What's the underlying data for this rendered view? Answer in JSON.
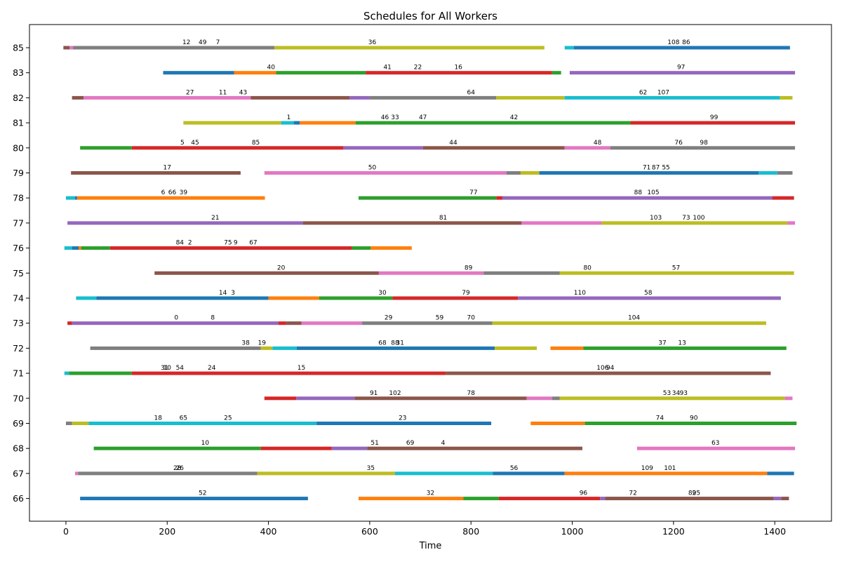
{
  "chart_data": {
    "type": "gantt",
    "title": "Schedules for All Workers",
    "xlabel": "Time",
    "ylabel": "",
    "xlim": [
      -72,
      1512
    ],
    "x_ticks": [
      0,
      200,
      400,
      600,
      800,
      1000,
      1200,
      1400
    ],
    "colors": {
      "blue": "#1f77b4",
      "orange": "#ff7f0e",
      "green": "#2ca02c",
      "red": "#d62728",
      "purple": "#9467bd",
      "brown": "#8c564b",
      "pink": "#e377c2",
      "gray": "#7f7f7f",
      "olive": "#bcbd22",
      "cyan": "#17becf"
    },
    "workers": [
      {
        "worker": "85",
        "segments": [
          [
            -5,
            7,
            "brown"
          ],
          [
            7,
            14,
            "pink"
          ],
          [
            14,
            412,
            "gray"
          ],
          [
            412,
            585,
            "olive"
          ],
          [
            585,
            945,
            "olive"
          ],
          [
            985,
            1003,
            "cyan"
          ],
          [
            1003,
            1430,
            "blue"
          ]
        ],
        "labels": [
          [
            238,
            "12"
          ],
          [
            270,
            "49"
          ],
          [
            300,
            "7"
          ],
          [
            605,
            "36"
          ],
          [
            1200,
            "108"
          ],
          [
            1225,
            "86"
          ]
        ]
      },
      {
        "worker": "83",
        "segments": [
          [
            192,
            332,
            "blue"
          ],
          [
            332,
            415,
            "orange"
          ],
          [
            415,
            592,
            "green"
          ],
          [
            592,
            960,
            "red"
          ],
          [
            960,
            978,
            "green"
          ],
          [
            995,
            1440,
            "purple"
          ]
        ],
        "labels": [
          [
            405,
            "40"
          ],
          [
            635,
            "41"
          ],
          [
            695,
            "22"
          ],
          [
            775,
            "16"
          ],
          [
            1215,
            "97"
          ]
        ]
      },
      {
        "worker": "82",
        "segments": [
          [
            12,
            35,
            "brown"
          ],
          [
            35,
            365,
            "pink"
          ],
          [
            365,
            560,
            "brown"
          ],
          [
            560,
            600,
            "purple"
          ],
          [
            600,
            850,
            "gray"
          ],
          [
            850,
            985,
            "olive"
          ],
          [
            985,
            1410,
            "cyan"
          ],
          [
            1410,
            1435,
            "olive"
          ]
        ],
        "labels": [
          [
            245,
            "27"
          ],
          [
            310,
            "11"
          ],
          [
            350,
            "43"
          ],
          [
            800,
            "64"
          ],
          [
            1140,
            "62"
          ],
          [
            1180,
            "107"
          ]
        ]
      },
      {
        "worker": "81",
        "segments": [
          [
            232,
            425,
            "olive"
          ],
          [
            425,
            450,
            "cyan"
          ],
          [
            450,
            462,
            "blue"
          ],
          [
            462,
            572,
            "orange"
          ],
          [
            572,
            1115,
            "green"
          ],
          [
            1115,
            1440,
            "red"
          ]
        ],
        "labels": [
          [
            440,
            "1"
          ],
          [
            630,
            "46"
          ],
          [
            650,
            "33"
          ],
          [
            705,
            "47"
          ],
          [
            885,
            "42"
          ],
          [
            1280,
            "99"
          ]
        ]
      },
      {
        "worker": "80",
        "segments": [
          [
            28,
            130,
            "green"
          ],
          [
            130,
            548,
            "red"
          ],
          [
            548,
            705,
            "purple"
          ],
          [
            705,
            985,
            "brown"
          ],
          [
            985,
            1075,
            "pink"
          ],
          [
            1075,
            1440,
            "gray"
          ]
        ],
        "labels": [
          [
            230,
            "5"
          ],
          [
            255,
            "45"
          ],
          [
            375,
            "85"
          ],
          [
            765,
            "44"
          ],
          [
            1050,
            "48"
          ],
          [
            1210,
            "76"
          ],
          [
            1260,
            "98"
          ]
        ]
      },
      {
        "worker": "79",
        "segments": [
          [
            10,
            345,
            "brown"
          ],
          [
            392,
            870,
            "pink"
          ],
          [
            870,
            898,
            "gray"
          ],
          [
            898,
            935,
            "olive"
          ],
          [
            935,
            1368,
            "blue"
          ],
          [
            1368,
            1405,
            "cyan"
          ],
          [
            1405,
            1435,
            "gray"
          ]
        ],
        "labels": [
          [
            200,
            "17"
          ],
          [
            605,
            "50"
          ],
          [
            1147,
            "71"
          ],
          [
            1165,
            "87"
          ],
          [
            1185,
            "55"
          ]
        ]
      },
      {
        "worker": "78",
        "segments": [
          [
            0,
            18,
            "cyan"
          ],
          [
            18,
            22,
            "blue"
          ],
          [
            22,
            393,
            "orange"
          ],
          [
            578,
            850,
            "green"
          ],
          [
            850,
            862,
            "red"
          ],
          [
            862,
            1395,
            "purple"
          ],
          [
            1395,
            1438,
            "red"
          ]
        ],
        "labels": [
          [
            192,
            "6"
          ],
          [
            210,
            "66"
          ],
          [
            232,
            "39"
          ],
          [
            805,
            "77"
          ],
          [
            1130,
            "88"
          ],
          [
            1160,
            "105"
          ]
        ]
      },
      {
        "worker": "77",
        "segments": [
          [
            3,
            468,
            "purple"
          ],
          [
            468,
            900,
            "brown"
          ],
          [
            900,
            1058,
            "pink"
          ],
          [
            1058,
            1425,
            "olive"
          ],
          [
            1425,
            1440,
            "pink"
          ]
        ],
        "labels": [
          [
            295,
            "21"
          ],
          [
            745,
            "81"
          ],
          [
            1165,
            "103"
          ],
          [
            1225,
            "73"
          ],
          [
            1250,
            "100"
          ]
        ]
      },
      {
        "worker": "76",
        "segments": [
          [
            -3,
            12,
            "cyan"
          ],
          [
            12,
            25,
            "blue"
          ],
          [
            25,
            30,
            "orange"
          ],
          [
            30,
            87,
            "green"
          ],
          [
            87,
            565,
            "red"
          ],
          [
            565,
            602,
            "green"
          ],
          [
            602,
            683,
            "orange"
          ]
        ],
        "labels": [
          [
            225,
            "84"
          ],
          [
            245,
            "2"
          ],
          [
            320,
            "75"
          ],
          [
            335,
            "9"
          ],
          [
            370,
            "67"
          ]
        ]
      },
      {
        "worker": "75",
        "segments": [
          [
            175,
            618,
            "brown"
          ],
          [
            618,
            825,
            "pink"
          ],
          [
            825,
            975,
            "gray"
          ],
          [
            975,
            1438,
            "olive"
          ]
        ],
        "labels": [
          [
            425,
            "20"
          ],
          [
            795,
            "89"
          ],
          [
            1030,
            "80"
          ],
          [
            1205,
            "57"
          ]
        ]
      },
      {
        "worker": "74",
        "segments": [
          [
            20,
            60,
            "cyan"
          ],
          [
            60,
            400,
            "blue"
          ],
          [
            400,
            500,
            "orange"
          ],
          [
            500,
            645,
            "green"
          ],
          [
            645,
            893,
            "red"
          ],
          [
            893,
            1412,
            "purple"
          ]
        ],
        "labels": [
          [
            310,
            "14"
          ],
          [
            330,
            "3"
          ],
          [
            625,
            "30"
          ],
          [
            790,
            "79"
          ],
          [
            1015,
            "110"
          ],
          [
            1150,
            "58"
          ]
        ]
      },
      {
        "worker": "73",
        "segments": [
          [
            3,
            12,
            "red"
          ],
          [
            12,
            420,
            "purple"
          ],
          [
            420,
            435,
            "red"
          ],
          [
            435,
            465,
            "brown"
          ],
          [
            465,
            585,
            "pink"
          ],
          [
            585,
            842,
            "gray"
          ],
          [
            842,
            1383,
            "olive"
          ]
        ],
        "labels": [
          [
            218,
            "0"
          ],
          [
            290,
            "8"
          ],
          [
            637,
            "29"
          ],
          [
            738,
            "59"
          ],
          [
            800,
            "70"
          ],
          [
            1122,
            "104"
          ]
        ]
      },
      {
        "worker": "72",
        "segments": [
          [
            48,
            385,
            "gray"
          ],
          [
            385,
            408,
            "olive"
          ],
          [
            408,
            456,
            "cyan"
          ],
          [
            456,
            847,
            "blue"
          ],
          [
            847,
            930,
            "olive"
          ],
          [
            957,
            1022,
            "orange"
          ],
          [
            1022,
            1423,
            "green"
          ]
        ],
        "labels": [
          [
            355,
            "38"
          ],
          [
            387,
            "19"
          ],
          [
            625,
            "68"
          ],
          [
            650,
            "88"
          ],
          [
            660,
            "31"
          ],
          [
            1178,
            "37"
          ],
          [
            1217,
            "13"
          ]
        ]
      },
      {
        "worker": "71",
        "segments": [
          [
            -3,
            6,
            "cyan"
          ],
          [
            6,
            130,
            "green"
          ],
          [
            130,
            750,
            "red"
          ],
          [
            750,
            1392,
            "brown"
          ]
        ],
        "labels": [
          [
            195,
            "31"
          ],
          [
            200,
            "10"
          ],
          [
            225,
            "54"
          ],
          [
            288,
            "24"
          ],
          [
            465,
            "15"
          ],
          [
            1060,
            "106"
          ],
          [
            1075,
            "94"
          ]
        ]
      },
      {
        "worker": "70",
        "segments": [
          [
            392,
            455,
            "red"
          ],
          [
            455,
            570,
            "purple"
          ],
          [
            570,
            910,
            "brown"
          ],
          [
            910,
            960,
            "pink"
          ],
          [
            960,
            975,
            "gray"
          ],
          [
            975,
            1420,
            "olive"
          ],
          [
            1420,
            1435,
            "pink"
          ]
        ],
        "labels": [
          [
            608,
            "91"
          ],
          [
            650,
            "102"
          ],
          [
            800,
            "78"
          ],
          [
            1187,
            "53"
          ],
          [
            1205,
            "34"
          ],
          [
            1220,
            "93"
          ]
        ]
      },
      {
        "worker": "69",
        "segments": [
          [
            0,
            12,
            "gray"
          ],
          [
            12,
            45,
            "olive"
          ],
          [
            45,
            495,
            "cyan"
          ],
          [
            495,
            840,
            "blue"
          ],
          [
            918,
            1025,
            "orange"
          ],
          [
            1025,
            1443,
            "green"
          ]
        ],
        "labels": [
          [
            182,
            "18"
          ],
          [
            232,
            "65"
          ],
          [
            320,
            "25"
          ],
          [
            665,
            "23"
          ],
          [
            1173,
            "74"
          ],
          [
            1240,
            "90"
          ]
        ]
      },
      {
        "worker": "68",
        "segments": [
          [
            55,
            385,
            "green"
          ],
          [
            385,
            525,
            "red"
          ],
          [
            525,
            595,
            "purple"
          ],
          [
            595,
            1020,
            "brown"
          ],
          [
            1128,
            1440,
            "pink"
          ]
        ],
        "labels": [
          [
            275,
            "10"
          ],
          [
            610,
            "51"
          ],
          [
            680,
            "69"
          ],
          [
            745,
            "4"
          ],
          [
            1283,
            "63"
          ]
        ]
      },
      {
        "worker": "67",
        "segments": [
          [
            18,
            24,
            "pink"
          ],
          [
            24,
            378,
            "gray"
          ],
          [
            378,
            650,
            "olive"
          ],
          [
            650,
            843,
            "cyan"
          ],
          [
            843,
            985,
            "blue"
          ],
          [
            985,
            1385,
            "orange"
          ],
          [
            1385,
            1438,
            "blue"
          ]
        ],
        "labels": [
          [
            220,
            "28"
          ],
          [
            225,
            "26"
          ],
          [
            602,
            "35"
          ],
          [
            885,
            "56"
          ],
          [
            1148,
            "109"
          ],
          [
            1193,
            "101"
          ]
        ]
      },
      {
        "worker": "66",
        "segments": [
          [
            28,
            478,
            "blue"
          ],
          [
            578,
            785,
            "orange"
          ],
          [
            785,
            855,
            "green"
          ],
          [
            855,
            1055,
            "red"
          ],
          [
            1055,
            1065,
            "purple"
          ],
          [
            1065,
            1398,
            "brown"
          ],
          [
            1398,
            1413,
            "purple"
          ],
          [
            1413,
            1428,
            "brown"
          ]
        ],
        "labels": [
          [
            270,
            "52"
          ],
          [
            720,
            "32"
          ],
          [
            1022,
            "96"
          ],
          [
            1120,
            "72"
          ],
          [
            1237,
            "82"
          ],
          [
            1245,
            "95"
          ]
        ]
      }
    ]
  }
}
